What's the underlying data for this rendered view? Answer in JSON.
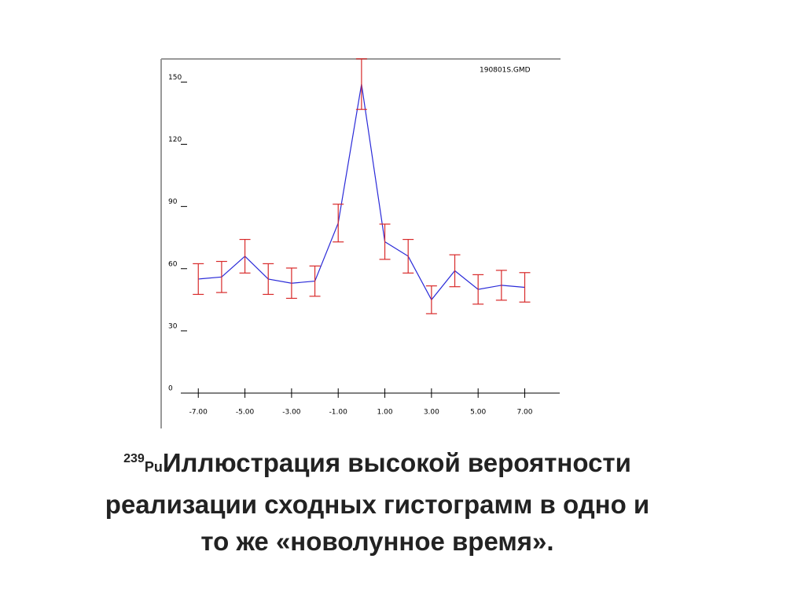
{
  "chart_data": {
    "type": "errorbar",
    "annotation": "190801S.GMD",
    "x": [
      -7,
      -6,
      -5,
      -4,
      -3,
      -2,
      -1,
      0,
      1,
      2,
      3,
      4,
      5,
      6,
      7
    ],
    "values": [
      55,
      56,
      66,
      55,
      53,
      54,
      82,
      149,
      73,
      66,
      45,
      59,
      50,
      52,
      51
    ],
    "errors": [
      7.4,
      7.5,
      8.1,
      7.4,
      7.3,
      7.3,
      9.1,
      12.2,
      8.5,
      8.1,
      6.7,
      7.7,
      7.1,
      7.2,
      7.1
    ],
    "color": "#2a2ad8",
    "error_color": "#d82a2a",
    "xlim": [
      -7.75,
      8.5
    ],
    "ylim": [
      0,
      160
    ],
    "xticks": [
      {
        "value": -7,
        "label": "-7.00"
      },
      {
        "value": -5,
        "label": "-5.00"
      },
      {
        "value": -3,
        "label": "-3.00"
      },
      {
        "value": -1,
        "label": "-1.00"
      },
      {
        "value": 1,
        "label": "1.00"
      },
      {
        "value": 3,
        "label": "3.00"
      },
      {
        "value": 5,
        "label": "5.00"
      },
      {
        "value": 7,
        "label": "7.00"
      }
    ],
    "yticks": [
      0,
      30,
      60,
      90,
      120,
      150
    ]
  },
  "caption": {
    "superscript": "239",
    "isotope": "Pu",
    "lines": [
      "Иллюстрация высокой вероятности",
      "реализации сходных  гистограмм в одно и",
      "то же «новолунное время»."
    ]
  }
}
